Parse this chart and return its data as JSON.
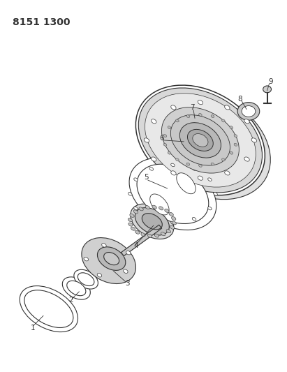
{
  "title_text": "8151 1300",
  "background_color": "#ffffff",
  "line_color": "#333333",
  "label_color": "#333333",
  "title_fontsize": 10,
  "lw": 0.8
}
